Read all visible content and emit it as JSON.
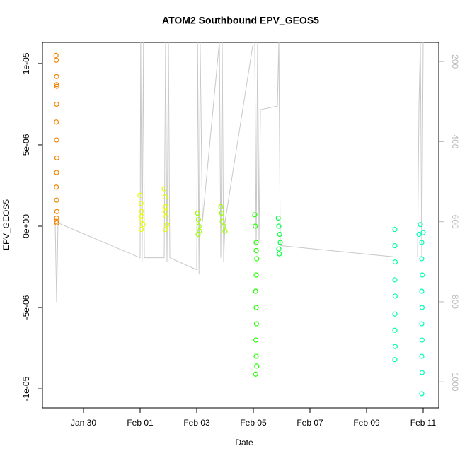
{
  "chart_data": {
    "type": "scatter",
    "title": "ATOM2 Southbound EPV_GEOS5",
    "x_label": "Date",
    "y_label": "EPV_GEOS5",
    "xlim": [
      28.55,
      42.55
    ],
    "xticks": [
      {
        "value": 30,
        "label": "Jan 30"
      },
      {
        "value": 32,
        "label": "Feb 01"
      },
      {
        "value": 34,
        "label": "Feb 03"
      },
      {
        "value": 36,
        "label": "Feb 05"
      },
      {
        "value": 38,
        "label": "Feb 07"
      },
      {
        "value": 40,
        "label": "Feb 09"
      },
      {
        "value": 42,
        "label": "Feb 11"
      }
    ],
    "ylim": [
      -1.117e-05,
      1.13e-05
    ],
    "yticks": [
      {
        "value": -1e-05,
        "label": "-1e-05"
      },
      {
        "value": -5e-06,
        "label": "-5e-06"
      },
      {
        "value": 0,
        "label": "0e+00"
      },
      {
        "value": 5e-06,
        "label": "5e-06"
      },
      {
        "value": 1e-05,
        "label": "1e-05"
      }
    ],
    "y2lim": [
      1065,
      152
    ],
    "y2ticks": [
      200,
      400,
      600,
      800,
      1000
    ],
    "series": [
      {
        "color": "#f28500",
        "x": [
          29.03,
          29.04,
          29.05,
          29.06,
          29.05,
          29.04,
          29.05,
          29.06,
          29.05,
          29.04,
          29.05,
          29.06,
          29.05,
          29.04,
          29.06,
          29.05
        ],
        "values": [
          1.05e-05,
          1.02e-05,
          9.2e-06,
          8.6e-06,
          7.5e-06,
          6.4e-06,
          5.3e-06,
          4.2e-06,
          3.3e-06,
          2.4e-06,
          1.6e-06,
          9e-07,
          5e-07,
          3e-07,
          2e-07,
          8.7e-06
        ]
      },
      {
        "color": "#e8ff00",
        "x": [
          32.0,
          32.03,
          32.05,
          32.07,
          32.1,
          32.04,
          32.06,
          32.85,
          32.88,
          32.9,
          32.92,
          32.95,
          32.89,
          32.91
        ],
        "values": [
          1.9e-06,
          1.4e-06,
          9e-07,
          4e-07,
          1e-07,
          -2e-07,
          6e-07,
          2.3e-06,
          1.8e-06,
          1.2e-06,
          6e-07,
          1e-07,
          -2e-07,
          9e-07
        ]
      },
      {
        "color": "#9cff00",
        "x": [
          34.03,
          34.06,
          34.08,
          34.1,
          34.05,
          34.85,
          34.88,
          34.9,
          34.95,
          35.0
        ],
        "values": [
          8e-07,
          4e-07,
          0,
          -3e-07,
          -5e-07,
          1.2e-06,
          8e-07,
          3e-07,
          0,
          -3e-07
        ]
      },
      {
        "color": "#22ff00",
        "x": [
          36.05,
          36.07,
          36.1,
          36.12,
          36.1,
          36.08,
          36.1,
          36.11,
          36.09,
          36.1,
          36.12,
          36.08,
          36.1
        ],
        "values": [
          7e-07,
          0,
          -1e-06,
          -2e-06,
          -3e-06,
          -4e-06,
          -5e-06,
          -6e-06,
          -7e-06,
          -8e-06,
          -8.6e-06,
          -9.1e-06,
          -1.5e-06
        ]
      },
      {
        "color": "#00ff44",
        "x": [
          36.88,
          36.9,
          36.93,
          36.95,
          36.9,
          36.92
        ],
        "values": [
          5e-07,
          0,
          -5e-07,
          -1e-06,
          -1.4e-06,
          -1.7e-06
        ]
      },
      {
        "color": "#00ffa0",
        "x": [
          41.0,
          41.0,
          41.01,
          41.0,
          41.01,
          41.0,
          41.0,
          41.01,
          41.0
        ],
        "values": [
          -2e-07,
          -1.2e-06,
          -2.2e-06,
          -3.3e-06,
          -4.3e-06,
          -5.4e-06,
          -6.4e-06,
          -7.4e-06,
          -8.2e-06
        ]
      },
      {
        "color": "#00ffb4",
        "x": [
          41.85,
          41.9,
          41.95,
          42.0,
          41.95,
          41.97,
          41.95,
          41.96,
          41.95,
          41.96,
          41.95,
          41.96,
          41.95
        ],
        "values": [
          -5e-07,
          1e-07,
          -1e-06,
          -4e-07,
          -2e-06,
          -3e-06,
          -4e-06,
          -5e-06,
          -6e-06,
          -7e-06,
          -8e-06,
          -9e-06,
          -1.03e-05
        ]
      },
      {
        "color": "#c8c8c8",
        "axis": "y2",
        "line": true,
        "x": [
          29.0,
          29.05,
          29.1,
          32.0,
          32.02,
          32.07,
          32.12,
          32.15,
          32.85,
          32.9,
          32.95,
          33.0,
          33.05,
          34.0,
          34.03,
          34.08,
          34.12,
          34.2,
          34.8,
          34.85,
          34.9,
          34.95,
          35.0,
          36.0,
          36.05,
          36.1,
          36.15,
          36.2,
          36.25,
          36.85,
          36.9,
          36.95,
          37.0,
          41.0,
          41.8,
          41.85,
          41.9,
          41.95,
          42.0
        ],
        "values": [
          603,
          800,
          603,
          690,
          150,
          700,
          150,
          690,
          690,
          150,
          700,
          150,
          690,
          720,
          150,
          730,
          150,
          600,
          150,
          690,
          150,
          700,
          600,
          150,
          150,
          660,
          150,
          650,
          320,
          311,
          150,
          660,
          660,
          688,
          688,
          311,
          150,
          690,
          150
        ]
      }
    ]
  }
}
